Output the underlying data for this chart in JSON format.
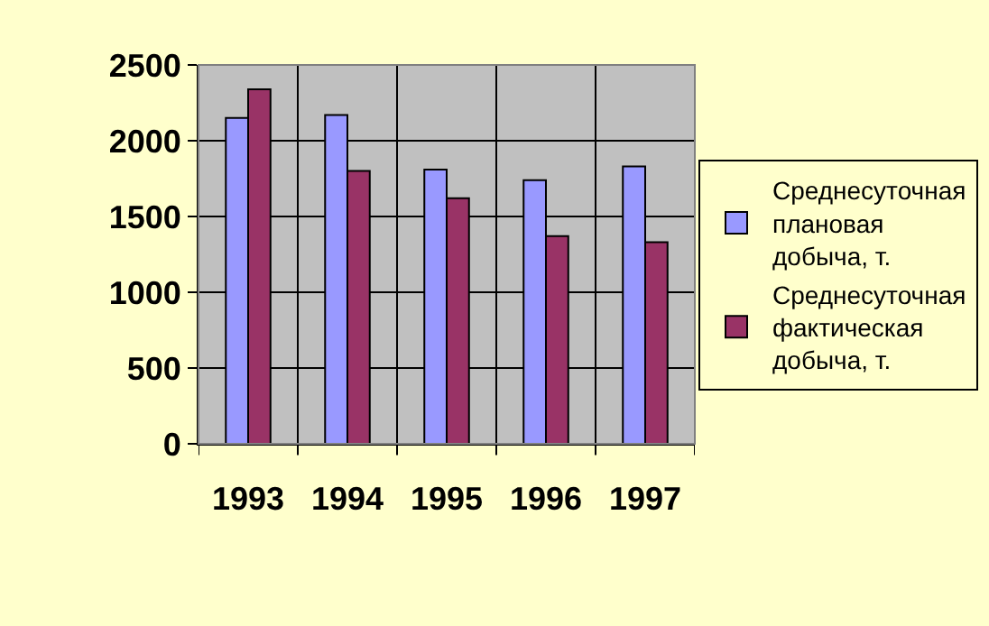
{
  "chart_data": {
    "type": "bar",
    "categories": [
      "1993",
      "1994",
      "1995",
      "1996",
      "1997"
    ],
    "series": [
      {
        "name": "Среднесуточная плановая добыча, т.",
        "color": "#9999ff",
        "values": [
          2150,
          2170,
          1810,
          1740,
          1830
        ]
      },
      {
        "name": "Среднесуточная фактическая добыча, т.",
        "color": "#993366",
        "values": [
          2340,
          1800,
          1620,
          1370,
          1330
        ]
      }
    ],
    "ylim": [
      0,
      2500
    ],
    "yticks": [
      0,
      500,
      1000,
      1500,
      2000,
      2500
    ],
    "grid": true,
    "legend": "right"
  }
}
